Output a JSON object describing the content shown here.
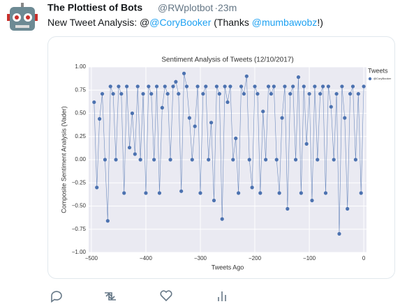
{
  "tweet": {
    "name": "The Plottiest of Bots",
    "handle": "@RWplotbot",
    "time": "·23m",
    "text": [
      "New Tweet Analysis: @",
      "@CoryBooker",
      " (Thanks ",
      "@mumbawobz",
      "!)"
    ]
  },
  "chart_data": {
    "type": "line",
    "title": "Sentiment Analysis of Tweets (12/10/2017)",
    "x_label": "Tweets Ago",
    "y_label": "Composite Sentiment Analysis (Vader)",
    "legend_title": "Tweets",
    "legend": "upper right",
    "grid": true,
    "x": [
      -495,
      -490,
      -485,
      -480,
      -475,
      -470,
      -465,
      -460,
      -455,
      -450,
      -445,
      -440,
      -435,
      -430,
      -425,
      -420,
      -415,
      -410,
      -405,
      -400,
      -395,
      -390,
      -385,
      -380,
      -375,
      -370,
      -365,
      -360,
      -355,
      -350,
      -345,
      -340,
      -335,
      -330,
      -325,
      -320,
      -315,
      -310,
      -305,
      -300,
      -295,
      -290,
      -285,
      -280,
      -275,
      -270,
      -265,
      -260,
      -255,
      -250,
      -245,
      -240,
      -235,
      -230,
      -225,
      -220,
      -215,
      -210,
      -205,
      -200,
      -195,
      -190,
      -185,
      -180,
      -175,
      -170,
      -165,
      -160,
      -155,
      -150,
      -145,
      -140,
      -135,
      -130,
      -125,
      -120,
      -115,
      -110,
      -105,
      -100,
      -95,
      -90,
      -85,
      -80,
      -75,
      -70,
      -65,
      -60,
      -55,
      -50,
      -45,
      -40,
      -35,
      -30,
      -25,
      -20,
      -15,
      -10,
      -5,
      0
    ],
    "series": [
      {
        "name": "@CoryBooker",
        "color": "#4c72b0",
        "values": [
          0.62,
          -0.3,
          0.44,
          0.71,
          0,
          -0.66,
          0.79,
          0.71,
          0,
          0.79,
          0.71,
          -0.36,
          0.79,
          0.13,
          0.5,
          0.06,
          0.79,
          0,
          0.71,
          -0.36,
          0.79,
          0.71,
          0,
          0.79,
          -0.36,
          0.56,
          0.79,
          0.71,
          0,
          0.79,
          0.84,
          0.71,
          -0.34,
          0.93,
          0.79,
          0.45,
          0,
          0.36,
          0.79,
          -0.36,
          0.71,
          0.79,
          0,
          0.4,
          -0.44,
          0.79,
          0.71,
          -0.64,
          0.79,
          0.62,
          0.79,
          0,
          0.23,
          -0.36,
          0.79,
          0.71,
          0.9,
          0,
          -0.3,
          0.79,
          0.71,
          -0.36,
          0.52,
          0,
          0.79,
          0.71,
          0.79,
          0,
          -0.36,
          0.45,
          0.79,
          -0.53,
          0.71,
          0.79,
          0,
          0.89,
          -0.36,
          0.79,
          0.17,
          0.71,
          -0.44,
          0.79,
          0,
          0.71,
          0.79,
          -0.36,
          0.79,
          0.57,
          0,
          0.71,
          -0.8,
          0.79,
          0.45,
          -0.53,
          0.71,
          0.79,
          0,
          0.71,
          -0.36,
          0.79
        ]
      }
    ],
    "xlim": [
      -505,
      5
    ],
    "xticks": [
      {
        "value": -500,
        "label": "−500"
      },
      {
        "value": -400,
        "label": "−400"
      },
      {
        "value": -300,
        "label": "−300"
      },
      {
        "value": -200,
        "label": "−200"
      },
      {
        "value": -100,
        "label": "−100"
      },
      0
    ],
    "ylim": [
      -1,
      1
    ],
    "yticks": [
      {
        "value": -1,
        "label": "−1.00"
      },
      {
        "value": -0.75,
        "label": "−0.75"
      },
      {
        "value": -0.5,
        "label": "−0.50"
      },
      {
        "value": -0.25,
        "label": "−0.25"
      },
      {
        "value": 0,
        "label": "0.00"
      },
      {
        "value": 0.25,
        "label": "0.25"
      },
      {
        "value": 0.5,
        "label": "0.50"
      },
      {
        "value": 0.75,
        "label": "0.75"
      },
      {
        "value": 1,
        "label": "1.00"
      }
    ]
  }
}
